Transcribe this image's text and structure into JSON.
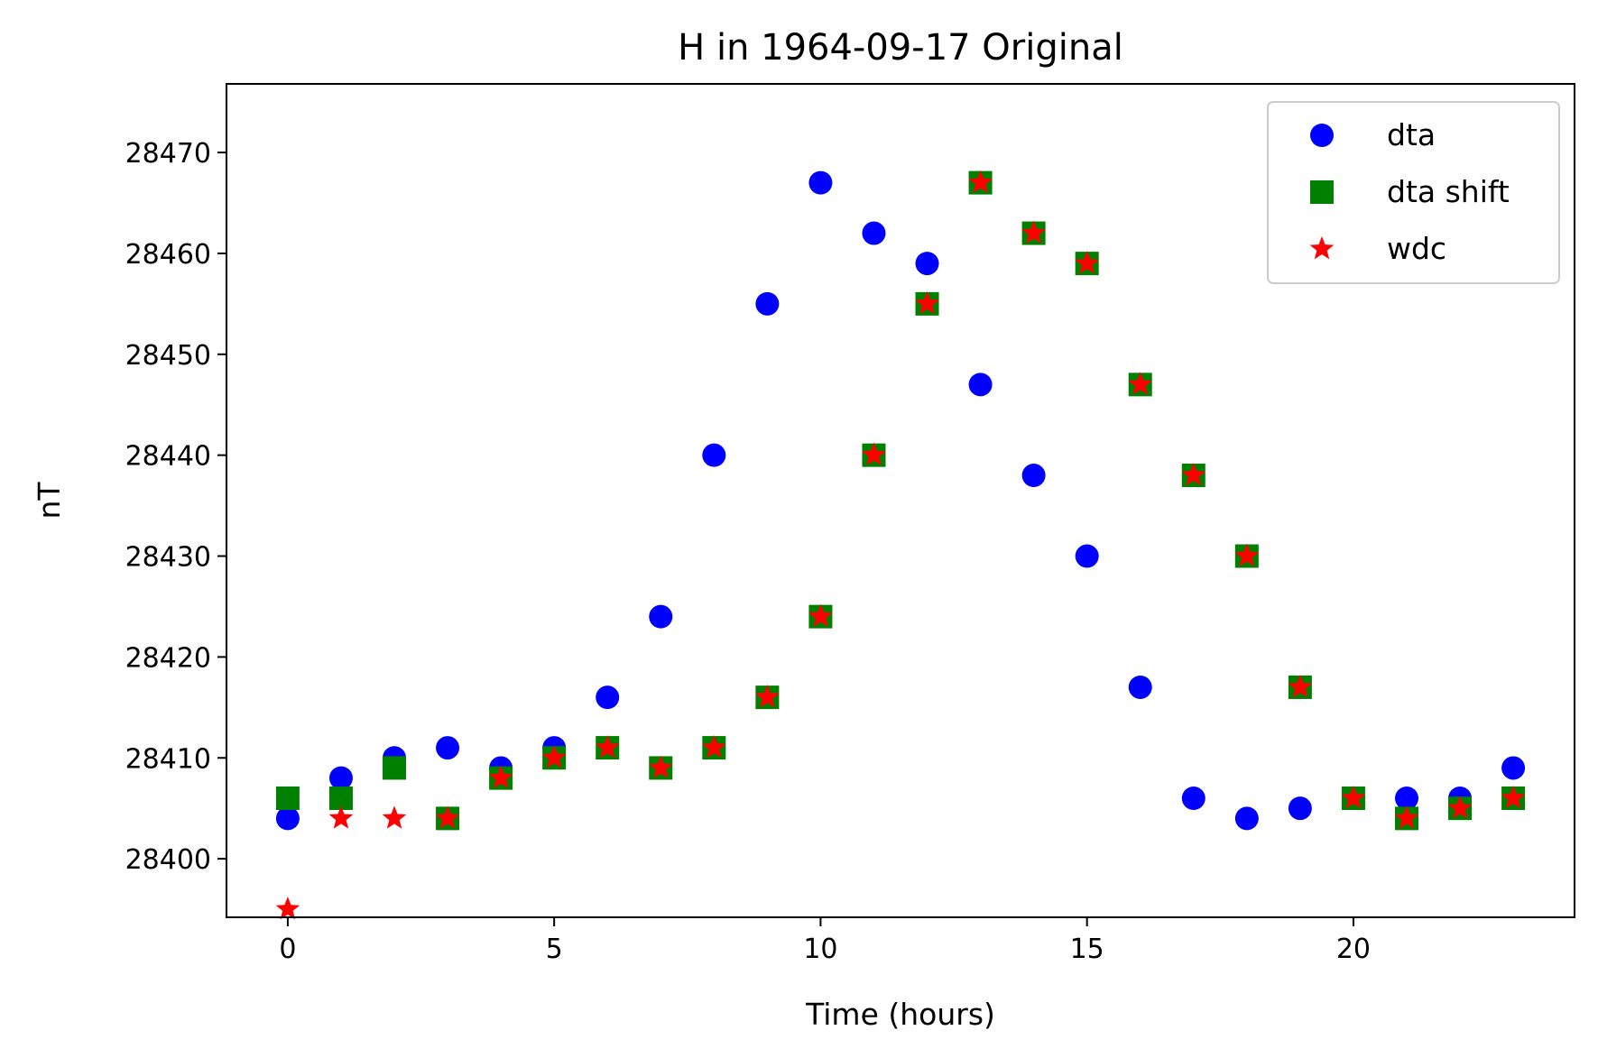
{
  "chart_data": {
    "type": "scatter",
    "title": "H in 1964-09-17 Original",
    "xlabel": "Time (hours)",
    "ylabel": "nT",
    "xlim": [
      -1.15,
      24.15
    ],
    "ylim": [
      28394.2,
      28476.8
    ],
    "xticks": [
      0,
      5,
      10,
      15,
      20
    ],
    "yticks": [
      28400,
      28410,
      28420,
      28430,
      28440,
      28450,
      28460,
      28470
    ],
    "grid": false,
    "legend_position": "top-right",
    "series": [
      {
        "name": "dta",
        "marker": "circle",
        "color": "#0000ff",
        "x": [
          0,
          1,
          2,
          3,
          4,
          5,
          6,
          7,
          8,
          9,
          10,
          11,
          12,
          13,
          14,
          15,
          16,
          17,
          18,
          19,
          20,
          21,
          22,
          23
        ],
        "y": [
          28404,
          28408,
          28410,
          28411,
          28409,
          28411,
          28416,
          28424,
          28440,
          28455,
          28467,
          28462,
          28459,
          28447,
          28438,
          28430,
          28417,
          28406,
          28404,
          28405,
          28406,
          28406,
          28406,
          28409
        ]
      },
      {
        "name": "dta shift",
        "marker": "square",
        "color": "#008000",
        "x": [
          0,
          1,
          2,
          3,
          4,
          5,
          6,
          7,
          8,
          9,
          10,
          11,
          12,
          13,
          14,
          15,
          16,
          17,
          18,
          19,
          20,
          21,
          22,
          23
        ],
        "y": [
          28406,
          28406,
          28409,
          28404,
          28408,
          28410,
          28411,
          28409,
          28411,
          28416,
          28424,
          28440,
          28455,
          28467,
          28462,
          28459,
          28447,
          28438,
          28430,
          28417,
          28406,
          28404,
          28405,
          28406
        ]
      },
      {
        "name": "wdc",
        "marker": "star",
        "color": "#ff0000",
        "x": [
          0,
          1,
          2,
          3,
          4,
          5,
          6,
          7,
          8,
          9,
          10,
          11,
          12,
          13,
          14,
          15,
          16,
          17,
          18,
          19,
          20,
          21,
          22,
          23
        ],
        "y": [
          28395,
          28404,
          28404,
          28404,
          28408,
          28410,
          28411,
          28409,
          28411,
          28416,
          28424,
          28440,
          28455,
          28467,
          28462,
          28459,
          28447,
          28438,
          28430,
          28417,
          28406,
          28404,
          28405,
          28406
        ]
      }
    ]
  }
}
